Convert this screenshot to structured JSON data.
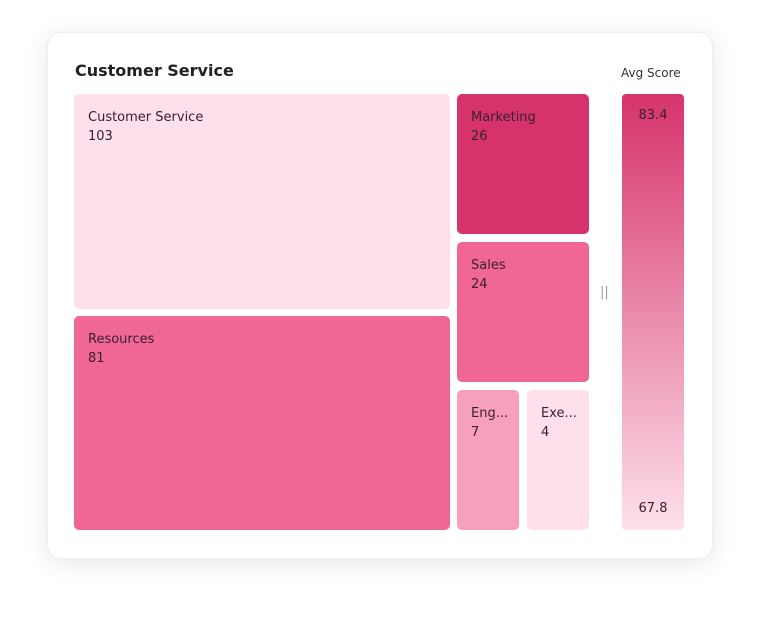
{
  "chart_data": {
    "type": "treemap",
    "title": "Customer Service",
    "color_metric_label": "Avg Score",
    "color_range": [
      67.8,
      83.4
    ],
    "color_scale": [
      "#fde0eb",
      "#d6336c"
    ],
    "nodes": [
      {
        "label": "Customer Service",
        "value": 103,
        "color": "#fde0eb"
      },
      {
        "label": "Resources",
        "value": 81,
        "color": "#f06695"
      },
      {
        "label": "Marketing",
        "value": 26,
        "color": "#d6336c"
      },
      {
        "label": "Sales",
        "value": 24,
        "color": "#f06695"
      },
      {
        "label": "Eng...",
        "value": 7,
        "color": "#f6a0bd"
      },
      {
        "label": "Exe...",
        "value": 4,
        "color": "#fde0eb"
      }
    ],
    "legend": {
      "max_label": "83.4",
      "min_label": "67.8",
      "handle": "||"
    }
  }
}
